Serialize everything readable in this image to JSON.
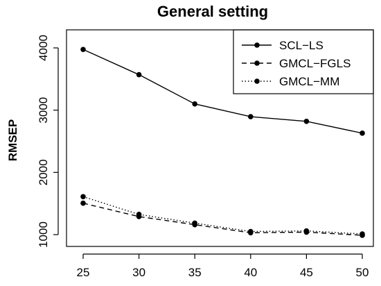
{
  "chart_data": {
    "type": "line",
    "title": "General setting",
    "xlabel": "",
    "ylabel": "RMSEP",
    "x": [
      25,
      30,
      35,
      40,
      45,
      50
    ],
    "xlim": [
      25,
      50
    ],
    "ylim": [
      1000,
      4000
    ],
    "xticks": [
      25,
      30,
      35,
      40,
      45,
      50
    ],
    "yticks": [
      1000,
      2000,
      3000,
      4000
    ],
    "grid": false,
    "legend_position": "top-right",
    "series": [
      {
        "name": "SCL−LS",
        "style": "solid",
        "values": [
          3975,
          3570,
          3100,
          2895,
          2820,
          2630
        ]
      },
      {
        "name": "GMCL−FGLS",
        "style": "dashed",
        "values": [
          1505,
          1290,
          1160,
          1030,
          1040,
          990
        ]
      },
      {
        "name": "GMCL−MM",
        "style": "dotted",
        "values": [
          1610,
          1325,
          1185,
          1050,
          1060,
          1010
        ]
      }
    ]
  }
}
